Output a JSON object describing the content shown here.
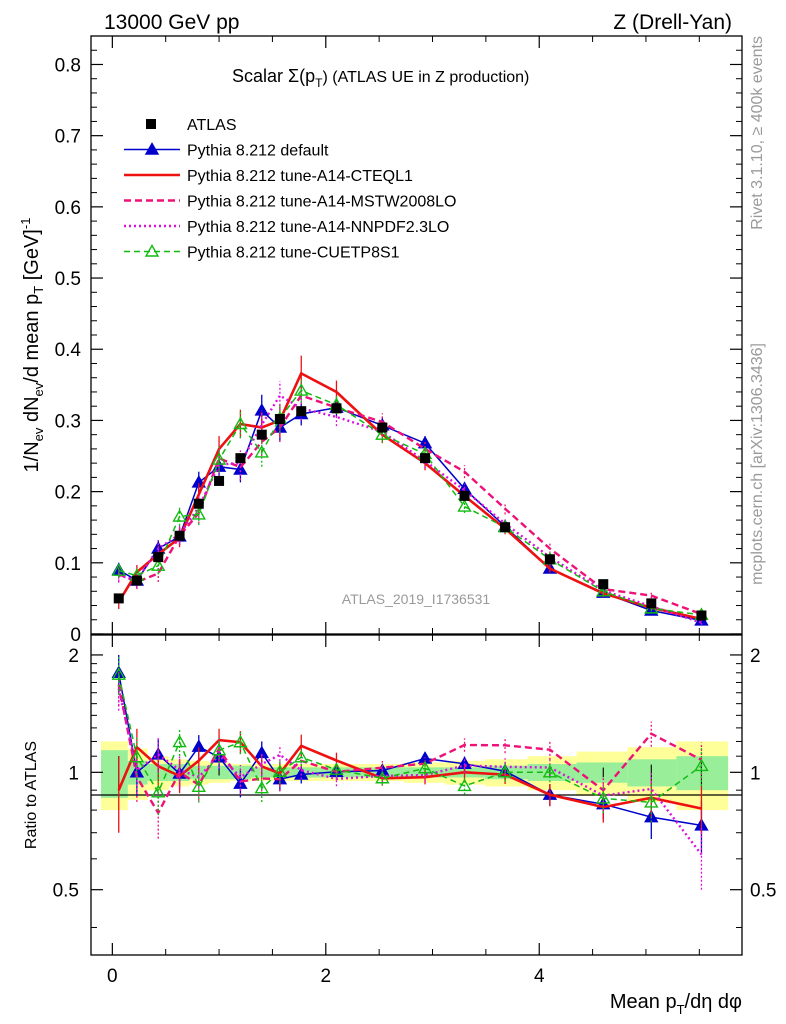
{
  "header": {
    "left": "13000 GeV pp",
    "right": "Z (Drell-Yan)"
  },
  "side": {
    "rivet": "Rivet 3.1.10, ≥ 400k events",
    "mcplots": "mcplots.cern.ch [arXiv:1306.3436]"
  },
  "watermark": "ATLAS_2019_I1736531",
  "colors": {
    "data": "#000000",
    "default": "#0000cc",
    "cteql1": "#ee1111",
    "mstw": "#ee1177",
    "nnpdf": "#dd11dd",
    "cuetp8s1": "#11bb11",
    "band_inner": "#99ee99",
    "band_outer": "#ffff99"
  },
  "chart_data": {
    "type": "line",
    "title": "Scalar Σ(pT) (ATLAS UE in Z production)",
    "title_main": "Scalar Σ(p",
    "title_sub": "T",
    "title_end": ") (ATLAS UE in Z production)",
    "xlabel": "Mean pT/dη dφ",
    "xlabel_parts": [
      "Mean p",
      "T",
      "/dη dφ"
    ],
    "ylabel": "1/Nev dNev/d mean pT [GeV]-1",
    "ylabel_parts": [
      "1/N",
      "ev",
      " dN",
      "ev",
      "/d mean p",
      "T",
      " [GeV]",
      "-1"
    ],
    "ratio_ylabel": "Ratio to ATLAS",
    "xlim": [
      -0.2,
      5.9
    ],
    "ylim": [
      0,
      0.84
    ],
    "ratio_ylim": [
      0.34,
      2.25
    ],
    "x_ticks": [
      0,
      2,
      4
    ],
    "x_tick_labels": [
      "0",
      "2",
      "4"
    ],
    "y_ticks": [
      0,
      0.1,
      0.2,
      0.3,
      0.4,
      0.5,
      0.6,
      0.7,
      0.8
    ],
    "y_tick_labels": [
      "0",
      "0.1",
      "0.2",
      "0.3",
      "0.4",
      "0.5",
      "0.6",
      "0.7",
      "0.8"
    ],
    "ratio_ticks": [
      0.5,
      1,
      2
    ],
    "ratio_tick_labels": [
      "0.5",
      "1",
      "2"
    ],
    "x": [
      0.06,
      0.23,
      0.43,
      0.63,
      0.81,
      1.0,
      1.2,
      1.4,
      1.57,
      1.77,
      2.1,
      2.53,
      2.93,
      3.3,
      3.68,
      4.1,
      4.6,
      5.05,
      5.52
    ],
    "data": {
      "name": "ATLAS",
      "values": [
        0.05,
        0.075,
        0.108,
        0.138,
        0.183,
        0.215,
        0.247,
        0.28,
        0.302,
        0.313,
        0.317,
        0.29,
        0.247,
        0.194,
        0.15,
        0.105,
        0.07,
        0.043,
        0.026
      ],
      "errors": [
        0.005,
        0.004,
        0.004,
        0.004,
        0.004,
        0.004,
        0.004,
        0.004,
        0.004,
        0.004,
        0.004,
        0.004,
        0.004,
        0.003,
        0.003,
        0.003,
        0.002,
        0.002,
        0.002
      ],
      "band_inner": [
        0.14,
        0.07,
        0.05,
        0.05,
        0.04,
        0.04,
        0.04,
        0.03,
        0.03,
        0.03,
        0.03,
        0.03,
        0.03,
        0.03,
        0.04,
        0.05,
        0.06,
        0.08,
        0.1
      ],
      "band_outer": [
        0.2,
        0.15,
        0.1,
        0.08,
        0.07,
        0.06,
        0.05,
        0.05,
        0.05,
        0.05,
        0.05,
        0.05,
        0.06,
        0.07,
        0.08,
        0.1,
        0.13,
        0.16,
        0.2
      ]
    },
    "series": [
      {
        "key": "default",
        "name": "Pythia 8.212 default",
        "values": [
          0.09,
          0.075,
          0.12,
          0.137,
          0.213,
          0.235,
          0.231,
          0.314,
          0.29,
          0.309,
          0.318,
          0.293,
          0.268,
          0.204,
          0.151,
          0.092,
          0.058,
          0.033,
          0.019
        ],
        "errors": [
          0.01,
          0.01,
          0.012,
          0.012,
          0.015,
          0.017,
          0.018,
          0.022,
          0.02,
          0.016,
          0.013,
          0.011,
          0.01,
          0.009,
          0.008,
          0.006,
          0.005,
          0.004,
          0.003
        ]
      },
      {
        "key": "cteql1",
        "name": "Pythia 8.212 tune-A14-CTEQL1",
        "values": [
          0.045,
          0.087,
          0.112,
          0.135,
          0.196,
          0.26,
          0.295,
          0.29,
          0.3,
          0.366,
          0.34,
          0.28,
          0.24,
          0.194,
          0.148,
          0.092,
          0.057,
          0.037,
          0.021
        ],
        "errors": [
          0.01,
          0.01,
          0.012,
          0.013,
          0.016,
          0.018,
          0.02,
          0.022,
          0.022,
          0.025,
          0.016,
          0.012,
          0.01,
          0.009,
          0.008,
          0.006,
          0.005,
          0.004,
          0.003
        ]
      },
      {
        "key": "mstw",
        "name": "Pythia 8.212 tune-A14-MSTW2008LO",
        "values": [
          0.084,
          0.073,
          0.085,
          0.138,
          0.17,
          0.247,
          0.234,
          0.27,
          0.29,
          0.335,
          0.318,
          0.298,
          0.26,
          0.228,
          0.176,
          0.12,
          0.063,
          0.054,
          0.028
        ],
        "errors": [
          0.01,
          0.01,
          0.012,
          0.013,
          0.015,
          0.018,
          0.018,
          0.02,
          0.02,
          0.018,
          0.014,
          0.012,
          0.01,
          0.009,
          0.008,
          0.007,
          0.005,
          0.004,
          0.003
        ]
      },
      {
        "key": "nnpdf",
        "name": "Pythia 8.212 tune-A14-NNPDF2.3LO",
        "values": [
          0.082,
          0.076,
          0.12,
          0.14,
          0.178,
          0.238,
          0.24,
          0.294,
          0.335,
          0.317,
          0.305,
          0.284,
          0.243,
          0.202,
          0.155,
          0.108,
          0.061,
          0.039,
          0.016
        ],
        "errors": [
          0.01,
          0.01,
          0.012,
          0.013,
          0.015,
          0.018,
          0.018,
          0.02,
          0.02,
          0.017,
          0.013,
          0.011,
          0.01,
          0.009,
          0.008,
          0.006,
          0.005,
          0.004,
          0.003
        ]
      },
      {
        "key": "cuetp8s1",
        "name": "Pythia 8.212 tune-CUETP8S1",
        "values": [
          0.089,
          0.082,
          0.096,
          0.165,
          0.168,
          0.245,
          0.295,
          0.255,
          0.303,
          0.342,
          0.322,
          0.28,
          0.253,
          0.179,
          0.15,
          0.105,
          0.06,
          0.036,
          0.027
        ],
        "errors": [
          0.01,
          0.01,
          0.012,
          0.013,
          0.015,
          0.018,
          0.02,
          0.02,
          0.02,
          0.017,
          0.013,
          0.011,
          0.01,
          0.009,
          0.008,
          0.006,
          0.005,
          0.004,
          0.003
        ]
      }
    ]
  }
}
